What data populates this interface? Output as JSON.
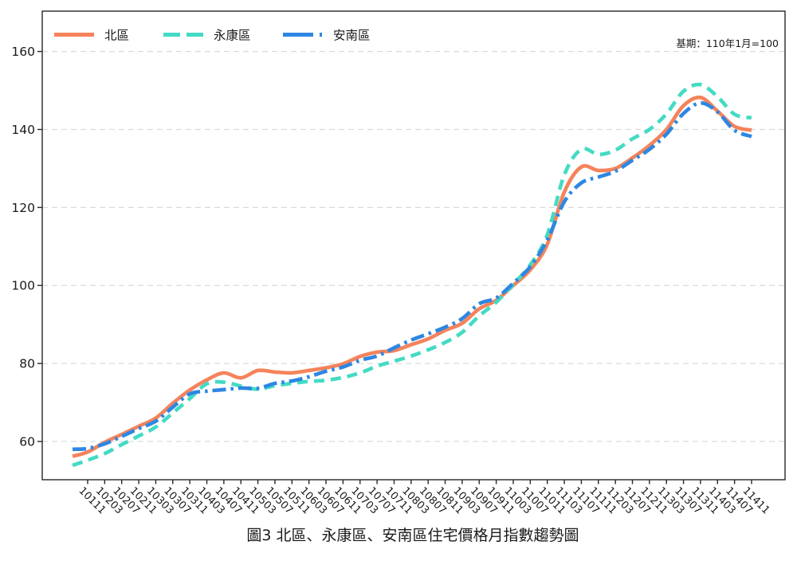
{
  "chart_data": {
    "type": "line",
    "title": "圖3 北區、永康區、安南區住宅價格月指數趨勢圖",
    "note": "基期：110年1月=100",
    "xlabel": "",
    "ylabel": "",
    "ylim": [
      50,
      170
    ],
    "yticks": [
      60,
      80,
      100,
      120,
      140,
      160
    ],
    "grid": "horizontal-dashed",
    "legend_position": "top-left-inside",
    "grid_color": "#d8dcdf",
    "axis_color": "#262626",
    "x_tick_labels": [
      "10111",
      "10203",
      "10207",
      "10211",
      "10303",
      "10307",
      "10311",
      "10403",
      "10407",
      "10411",
      "10503",
      "10507",
      "10511",
      "10603",
      "10607",
      "10611",
      "10703",
      "10707",
      "10711",
      "10803",
      "10807",
      "10811",
      "10903",
      "10907",
      "10911",
      "11003",
      "11007",
      "11011",
      "11103",
      "11107",
      "11111",
      "11203",
      "11207",
      "11211",
      "11303",
      "11307",
      "11311",
      "11403",
      "11407",
      "11411"
    ],
    "series": [
      {
        "id": "north",
        "name": "北區",
        "color": "#F5835B",
        "style": "solid",
        "lead": 56.2,
        "values": [
          57.3,
          59.8,
          61.8,
          63.9,
          66.0,
          69.8,
          73.2,
          75.8,
          77.6,
          76.3,
          78.2,
          77.8,
          77.6,
          78.2,
          78.9,
          79.9,
          81.8,
          82.9,
          83.3,
          84.8,
          86.3,
          88.5,
          90.3,
          94.0,
          96.2,
          100.0,
          104.0,
          110.6,
          124.0,
          130.4,
          129.5,
          130.0,
          132.7,
          135.9,
          140.0,
          146.1,
          148.2,
          144.7,
          140.8,
          139.8
        ]
      },
      {
        "id": "yongkang",
        "name": "永康區",
        "color": "#43DBC4",
        "style": "dashed",
        "lead": 53.9,
        "values": [
          55.2,
          56.9,
          59.2,
          61.4,
          63.7,
          67.3,
          71.0,
          74.8,
          75.2,
          74.2,
          73.4,
          74.3,
          74.9,
          75.4,
          75.7,
          76.4,
          77.6,
          79.3,
          80.6,
          81.9,
          83.5,
          85.4,
          88.0,
          92.2,
          95.7,
          100.3,
          105.3,
          113.0,
          128.4,
          134.9,
          133.6,
          134.7,
          137.6,
          140.0,
          144.0,
          149.8,
          151.5,
          148.4,
          143.9,
          143.0
        ]
      },
      {
        "id": "annan",
        "name": "安南區",
        "color": "#2D87E2",
        "style": "dash-dot",
        "lead": 58.0,
        "values": [
          58.2,
          59.4,
          61.3,
          63.3,
          65.2,
          68.8,
          72.2,
          72.9,
          73.3,
          73.7,
          73.6,
          74.9,
          75.5,
          76.6,
          78.0,
          79.1,
          80.8,
          81.9,
          84.0,
          86.0,
          87.6,
          89.3,
          91.5,
          95.3,
          96.8,
          100.6,
          104.8,
          111.7,
          121.5,
          126.3,
          127.8,
          129.3,
          132.1,
          134.9,
          138.8,
          144.1,
          146.8,
          144.5,
          139.8,
          138.2
        ]
      }
    ]
  }
}
